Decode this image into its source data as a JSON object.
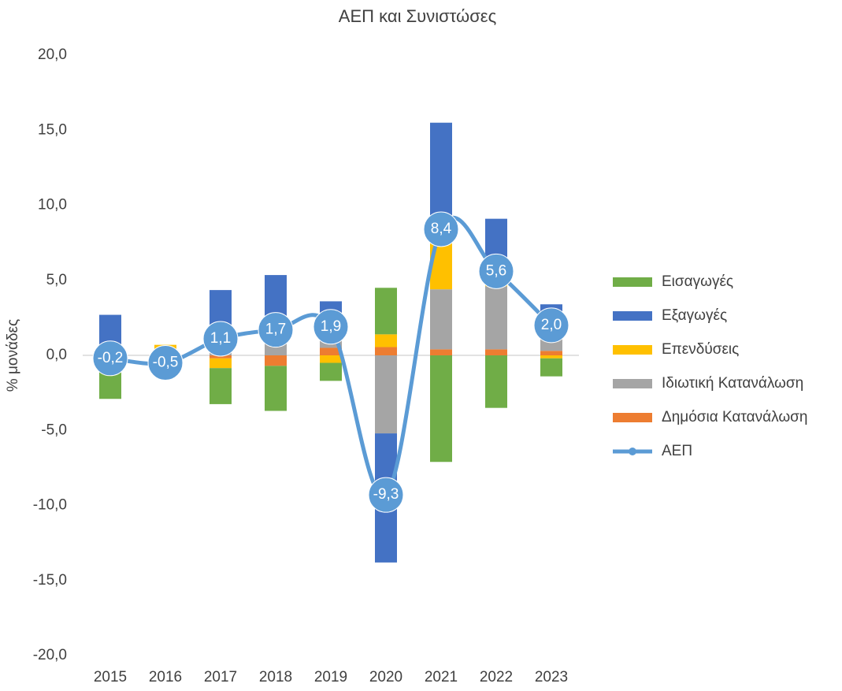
{
  "chart_data": {
    "type": "bar",
    "title": "ΑΕΠ και Συνιστώσες",
    "y_axis_label": "% μονάδες",
    "categories": [
      "2015",
      "2016",
      "2017",
      "2018",
      "2019",
      "2020",
      "2021",
      "2022",
      "2023"
    ],
    "ylim": [
      -20,
      20
    ],
    "yticks": [
      {
        "value": -20,
        "label": "-20,0"
      },
      {
        "value": -15,
        "label": "-15,0"
      },
      {
        "value": -10,
        "label": "-10,0"
      },
      {
        "value": -5,
        "label": "-5,0"
      },
      {
        "value": 0,
        "label": "0,0"
      },
      {
        "value": 5,
        "label": "5,0"
      },
      {
        "value": 10,
        "label": "10,0"
      },
      {
        "value": 15,
        "label": "15,0"
      },
      {
        "value": 20,
        "label": "20,0"
      }
    ],
    "stacked": true,
    "legend": "right",
    "series": [
      {
        "name": "Δημόσια Κατανάλωση",
        "color": "#ed7d31",
        "type": "bar",
        "values": [
          -0.1,
          -0.4,
          -0.2,
          -0.7,
          0.5,
          0.55,
          0.4,
          0.4,
          0.3
        ]
      },
      {
        "name": "Ιδιωτική Κατανάλωση",
        "color": "#a5a5a5",
        "type": "bar",
        "values": [
          0.5,
          0.0,
          1.4,
          1.0,
          0.7,
          -5.2,
          4.0,
          4.2,
          1.0
        ]
      },
      {
        "name": "Επενδύσεις",
        "color": "#ffc000",
        "type": "bar",
        "values": [
          0.2,
          0.7,
          -0.65,
          0.0,
          -0.5,
          0.85,
          3.1,
          0.7,
          -0.2
        ]
      },
      {
        "name": "Εξαγωγές",
        "color": "#4472c4",
        "type": "bar",
        "values": [
          2.0,
          0.0,
          2.95,
          4.35,
          2.4,
          -8.6,
          8.0,
          3.8,
          2.1
        ]
      },
      {
        "name": "Εισαγωγές",
        "color": "#70ad47",
        "type": "bar",
        "values": [
          -2.8,
          -0.8,
          -2.4,
          -3.0,
          -1.2,
          3.1,
          -7.1,
          -3.5,
          -1.2
        ]
      },
      {
        "name": "ΑΕΠ",
        "color": "#5b9bd5",
        "type": "line",
        "values": [
          -0.2,
          -0.5,
          1.1,
          1.7,
          1.9,
          -9.3,
          8.4,
          5.6,
          2.0
        ],
        "value_labels": [
          "-0,2",
          "-0,5",
          "1,1",
          "1,7",
          "1,9",
          "-9,3",
          "8,4",
          "5,6",
          "2,0"
        ]
      }
    ]
  }
}
